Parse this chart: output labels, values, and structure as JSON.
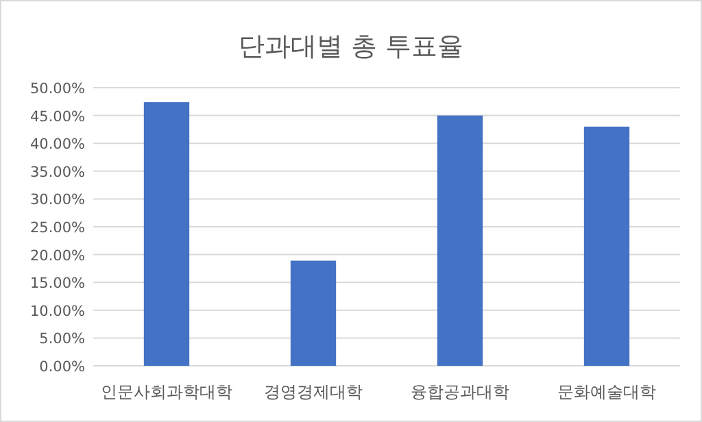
{
  "chart_data": {
    "type": "bar",
    "title": "단과대별 총 투표율",
    "categories": [
      "인문사회과학대학",
      "경영경제대학",
      "융합공과대학",
      "문화예술대학"
    ],
    "values": [
      47.4,
      18.9,
      45.0,
      43.0
    ],
    "color": "#4472c4",
    "ylim": [
      0,
      50
    ],
    "yticks": [
      {
        "value": 0,
        "label": "0.00%"
      },
      {
        "value": 5,
        "label": "5.00%"
      },
      {
        "value": 10,
        "label": "10.00%"
      },
      {
        "value": 15,
        "label": "15.00%"
      },
      {
        "value": 20,
        "label": "20.00%"
      },
      {
        "value": 25,
        "label": "25.00%"
      },
      {
        "value": 30,
        "label": "30.00%"
      },
      {
        "value": 35,
        "label": "35.00%"
      },
      {
        "value": 40,
        "label": "40.00%"
      },
      {
        "value": 45,
        "label": "45.00%"
      },
      {
        "value": 50,
        "label": "50.00%"
      }
    ],
    "grid": "y"
  }
}
